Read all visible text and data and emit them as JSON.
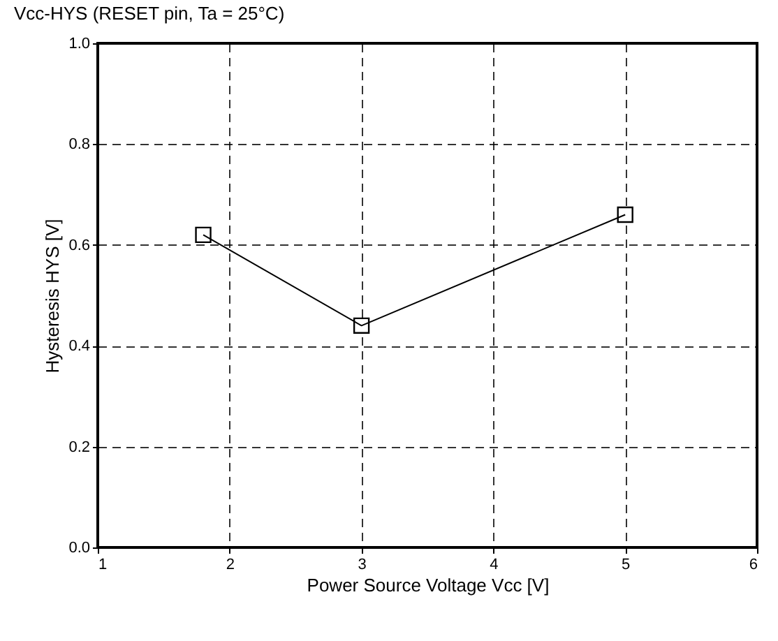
{
  "chart_data": {
    "type": "line",
    "title": "Vcc-HYS (RESET pin, Ta = 25°C)",
    "xlabel": "Power Source Voltage Vcc [V]",
    "ylabel": "Hysteresis HYS [V]",
    "x": [
      1.8,
      3,
      5
    ],
    "series": [
      {
        "color": "#000000",
        "values": [
          0.62,
          0.44,
          0.66
        ]
      }
    ],
    "xlim": [
      1,
      6
    ],
    "xticks": [
      1,
      2,
      3,
      4,
      5,
      6
    ],
    "ylim": [
      0,
      1
    ],
    "yticks": [
      {
        "value": 0,
        "label": "0.0"
      },
      {
        "value": 0.2,
        "label": "0.2"
      },
      {
        "value": 0.4,
        "label": "0.4"
      },
      {
        "value": 0.6,
        "label": "0.6"
      },
      {
        "value": 0.8,
        "label": "0.8"
      },
      {
        "value": 1,
        "label": "1.0"
      }
    ],
    "grid": true,
    "marker": "square",
    "line_style": "solid"
  }
}
